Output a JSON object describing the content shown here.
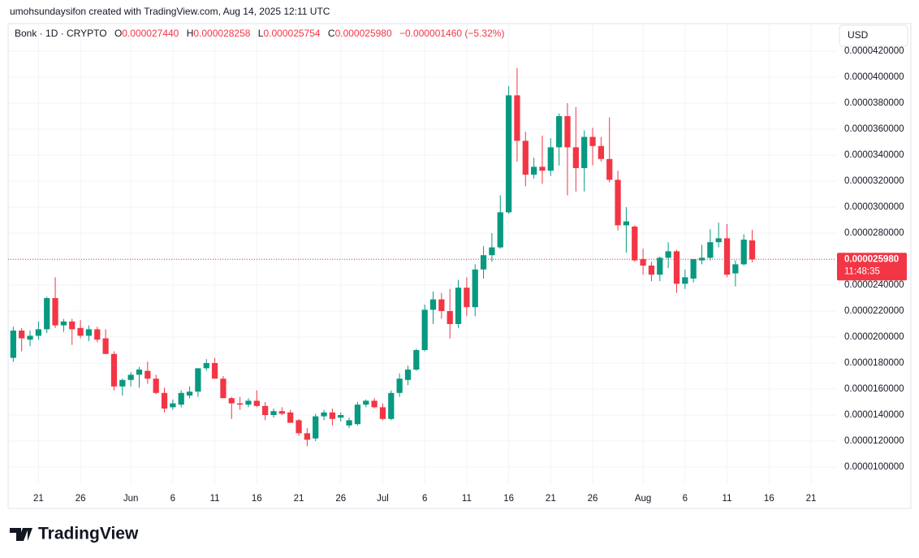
{
  "creator_line": "umohsundaysifon created with TradingView.com, Aug 14, 2025 12:11 UTC",
  "brand": "TradingView",
  "currency": "USD",
  "header": {
    "symbol": "Bonk · 1D · CRYPTO",
    "ohlc": [
      {
        "key": "O",
        "value": "0.000027440"
      },
      {
        "key": "H",
        "value": "0.000028258"
      },
      {
        "key": "L",
        "value": "0.000025754"
      },
      {
        "key": "C",
        "value": "0.000025980"
      }
    ],
    "change": "−0.000001460 (−5.32%)"
  },
  "price_label": "0.000025980",
  "countdown": "11:48:35",
  "chart_data": {
    "type": "candlestick",
    "up_color": "#089981",
    "down_color": "#f23645",
    "grid": true,
    "x": [
      "2025-05-18",
      "2025-05-19",
      "2025-05-20",
      "2025-05-21",
      "2025-05-22",
      "2025-05-23",
      "2025-05-24",
      "2025-05-25",
      "2025-05-26",
      "2025-05-27",
      "2025-05-28",
      "2025-05-29",
      "2025-05-30",
      "2025-05-31",
      "2025-06-01",
      "2025-06-02",
      "2025-06-03",
      "2025-06-04",
      "2025-06-05",
      "2025-06-06",
      "2025-06-07",
      "2025-06-08",
      "2025-06-09",
      "2025-06-10",
      "2025-06-11",
      "2025-06-12",
      "2025-06-13",
      "2025-06-14",
      "2025-06-15",
      "2025-06-16",
      "2025-06-17",
      "2025-06-18",
      "2025-06-19",
      "2025-06-20",
      "2025-06-21",
      "2025-06-22",
      "2025-06-23",
      "2025-06-24",
      "2025-06-25",
      "2025-06-26",
      "2025-06-27",
      "2025-06-28",
      "2025-06-29",
      "2025-06-30",
      "2025-07-01",
      "2025-07-02",
      "2025-07-03",
      "2025-07-04",
      "2025-07-05",
      "2025-07-06",
      "2025-07-07",
      "2025-07-08",
      "2025-07-09",
      "2025-07-10",
      "2025-07-11",
      "2025-07-12",
      "2025-07-13",
      "2025-07-14",
      "2025-07-15",
      "2025-07-16",
      "2025-07-17",
      "2025-07-18",
      "2025-07-19",
      "2025-07-20",
      "2025-07-21",
      "2025-07-22",
      "2025-07-23",
      "2025-07-24",
      "2025-07-25",
      "2025-07-26",
      "2025-07-27",
      "2025-07-28",
      "2025-07-29",
      "2025-07-30",
      "2025-07-31",
      "2025-08-01",
      "2025-08-02",
      "2025-08-03",
      "2025-08-04",
      "2025-08-05",
      "2025-08-06",
      "2025-08-07",
      "2025-08-08",
      "2025-08-09",
      "2025-08-10",
      "2025-08-11",
      "2025-08-12",
      "2025-08-13",
      "2025-08-14"
    ],
    "open": [
      1.84e-05,
      2.05e-05,
      1.98e-05,
      2.01e-05,
      2.06e-05,
      2.3e-05,
      2.09e-05,
      2.12e-05,
      2.07e-05,
      2.01e-05,
      2.06e-05,
      1.99e-05,
      1.87e-05,
      1.62e-05,
      1.67e-05,
      1.71e-05,
      1.74e-05,
      1.68e-05,
      1.57e-05,
      1.46e-05,
      1.48e-05,
      1.55e-05,
      1.58e-05,
      1.76e-05,
      1.8e-05,
      1.68e-05,
      1.53e-05,
      1.49e-05,
      1.48e-05,
      1.51e-05,
      1.47e-05,
      1.4e-05,
      1.43e-05,
      1.42e-05,
      1.36e-05,
      1.26e-05,
      1.22e-05,
      1.39e-05,
      1.42e-05,
      1.38e-05,
      1.32e-05,
      1.33e-05,
      1.48e-05,
      1.51e-05,
      1.46e-05,
      1.37e-05,
      1.57e-05,
      1.67e-05,
      1.75e-05,
      1.9e-05,
      2.21e-05,
      2.29e-05,
      2.2e-05,
      2.1e-05,
      2.38e-05,
      2.23e-05,
      2.52e-05,
      2.63e-05,
      2.69e-05,
      2.96e-05,
      3.86e-05,
      3.51e-05,
      3.25e-05,
      3.31e-05,
      3.28e-05,
      3.46e-05,
      3.7e-05,
      3.46e-05,
      3.3e-05,
      3.54e-05,
      3.47e-05,
      3.37e-05,
      3.21e-05,
      2.86e-05,
      2.85e-05,
      2.6e-05,
      2.55e-05,
      2.48e-05,
      2.61e-05,
      2.66e-05,
      2.41e-05,
      2.45e-05,
      2.59e-05,
      2.61e-05,
      2.73e-05,
      2.76e-05,
      2.49e-05,
      2.56e-05,
      2.744e-05
    ],
    "high": [
      2.08e-05,
      2.07e-05,
      2.05e-05,
      2.12e-05,
      2.31e-05,
      2.46e-05,
      2.14e-05,
      2.14e-05,
      2.13e-05,
      2.09e-05,
      2.08e-05,
      2.06e-05,
      1.89e-05,
      1.68e-05,
      1.73e-05,
      1.77e-05,
      1.81e-05,
      1.71e-05,
      1.61e-05,
      1.52e-05,
      1.59e-05,
      1.62e-05,
      1.76e-05,
      1.83e-05,
      1.84e-05,
      1.7e-05,
      1.54e-05,
      1.54e-05,
      1.53e-05,
      1.59e-05,
      1.5e-05,
      1.45e-05,
      1.46e-05,
      1.44e-05,
      1.37e-05,
      1.3e-05,
      1.41e-05,
      1.44e-05,
      1.45e-05,
      1.42e-05,
      1.38e-05,
      1.5e-05,
      1.52e-05,
      1.53e-05,
      1.49e-05,
      1.59e-05,
      1.72e-05,
      1.78e-05,
      1.91e-05,
      2.25e-05,
      2.35e-05,
      2.34e-05,
      2.37e-05,
      2.44e-05,
      2.46e-05,
      2.56e-05,
      2.7e-05,
      2.8e-05,
      3.09e-05,
      3.93e-05,
      4.07e-05,
      3.58e-05,
      3.38e-05,
      3.55e-05,
      3.53e-05,
      3.72e-05,
      3.8e-05,
      3.77e-05,
      3.59e-05,
      3.61e-05,
      3.54e-05,
      3.69e-05,
      3.28e-05,
      3e-05,
      2.86e-05,
      2.68e-05,
      2.58e-05,
      2.62e-05,
      2.73e-05,
      2.67e-05,
      2.52e-05,
      2.6e-05,
      2.71e-05,
      2.83e-05,
      2.88e-05,
      2.87e-05,
      2.59e-05,
      2.79e-05,
      2.8258e-05
    ],
    "low": [
      1.81e-05,
      1.89e-05,
      1.93e-05,
      1.98e-05,
      2.03e-05,
      2.07e-05,
      2.04e-05,
      1.94e-05,
      1.99e-05,
      1.97e-05,
      1.96e-05,
      1.87e-05,
      1.59e-05,
      1.55e-05,
      1.62e-05,
      1.61e-05,
      1.64e-05,
      1.56e-05,
      1.42e-05,
      1.44e-05,
      1.46e-05,
      1.53e-05,
      1.54e-05,
      1.74e-05,
      1.68e-05,
      1.53e-05,
      1.37e-05,
      1.44e-05,
      1.46e-05,
      1.46e-05,
      1.36e-05,
      1.38e-05,
      1.4e-05,
      1.34e-05,
      1.24e-05,
      1.16e-05,
      1.2e-05,
      1.36e-05,
      1.32e-05,
      1.35e-05,
      1.3e-05,
      1.32e-05,
      1.46e-05,
      1.45e-05,
      1.36e-05,
      1.36e-05,
      1.54e-05,
      1.63e-05,
      1.74e-05,
      1.89e-05,
      2.1e-05,
      2.14e-05,
      1.99e-05,
      2.07e-05,
      2.16e-05,
      2.16e-05,
      2.45e-05,
      2.58e-05,
      2.68e-05,
      2.95e-05,
      3.35e-05,
      3.16e-05,
      3.22e-05,
      3.18e-05,
      3.24e-05,
      3.32e-05,
      3.09e-05,
      3.12e-05,
      3.12e-05,
      3.32e-05,
      3.35e-05,
      3.19e-05,
      2.82e-05,
      2.65e-05,
      2.58e-05,
      2.48e-05,
      2.43e-05,
      2.43e-05,
      2.53e-05,
      2.34e-05,
      2.37e-05,
      2.42e-05,
      2.56e-05,
      2.59e-05,
      2.69e-05,
      2.46e-05,
      2.39e-05,
      2.55e-05,
      2.5754e-05
    ],
    "close": [
      2.05e-05,
      1.99e-05,
      2.01e-05,
      2.06e-05,
      2.3e-05,
      2.09e-05,
      2.12e-05,
      2.06e-05,
      2.01e-05,
      2.06e-05,
      1.98e-05,
      1.87e-05,
      1.62e-05,
      1.67e-05,
      1.71e-05,
      1.75e-05,
      1.68e-05,
      1.57e-05,
      1.45e-05,
      1.49e-05,
      1.57e-05,
      1.58e-05,
      1.76e-05,
      1.8e-05,
      1.68e-05,
      1.53e-05,
      1.49e-05,
      1.48e-05,
      1.51e-05,
      1.47e-05,
      1.4e-05,
      1.43e-05,
      1.41e-05,
      1.34e-05,
      1.26e-05,
      1.21e-05,
      1.39e-05,
      1.42e-05,
      1.37e-05,
      1.4e-05,
      1.36e-05,
      1.48e-05,
      1.51e-05,
      1.46e-05,
      1.37e-05,
      1.57e-05,
      1.68e-05,
      1.75e-05,
      1.9e-05,
      2.21e-05,
      2.29e-05,
      2.2e-05,
      2.1e-05,
      2.38e-05,
      2.23e-05,
      2.52e-05,
      2.63e-05,
      2.69e-05,
      2.96e-05,
      3.86e-05,
      3.51e-05,
      3.25e-05,
      3.31e-05,
      3.28e-05,
      3.46e-05,
      3.7e-05,
      3.46e-05,
      3.3e-05,
      3.54e-05,
      3.47e-05,
      3.37e-05,
      3.21e-05,
      2.86e-05,
      2.89e-05,
      2.59e-05,
      2.55e-05,
      2.48e-05,
      2.61e-05,
      2.66e-05,
      2.41e-05,
      2.46e-05,
      2.6e-05,
      2.61e-05,
      2.73e-05,
      2.76e-05,
      2.48e-05,
      2.56e-05,
      2.75e-05,
      2.598e-05
    ],
    "xlim": [
      "2025-05-17",
      "2025-08-24"
    ],
    "xticks": [
      {
        "value": "2025-05-21",
        "label": "21"
      },
      {
        "value": "2025-05-26",
        "label": "26"
      },
      {
        "value": "2025-06-01",
        "label": "Jun"
      },
      {
        "value": "2025-06-06",
        "label": "6"
      },
      {
        "value": "2025-06-11",
        "label": "11"
      },
      {
        "value": "2025-06-16",
        "label": "16"
      },
      {
        "value": "2025-06-21",
        "label": "21"
      },
      {
        "value": "2025-06-26",
        "label": "26"
      },
      {
        "value": "2025-07-01",
        "label": "Jul"
      },
      {
        "value": "2025-07-06",
        "label": "6"
      },
      {
        "value": "2025-07-11",
        "label": "11"
      },
      {
        "value": "2025-07-16",
        "label": "16"
      },
      {
        "value": "2025-07-21",
        "label": "21"
      },
      {
        "value": "2025-07-26",
        "label": "26"
      },
      {
        "value": "2025-08-01",
        "label": "Aug"
      },
      {
        "value": "2025-08-06",
        "label": "6"
      },
      {
        "value": "2025-08-11",
        "label": "11"
      },
      {
        "value": "2025-08-16",
        "label": "16"
      },
      {
        "value": "2025-08-21",
        "label": "21"
      }
    ],
    "ylim": [
      8.75e-06,
      4.406e-05
    ],
    "yticks": [
      {
        "value": 1e-05,
        "label": "0.0000100000"
      },
      {
        "value": 1.2e-05,
        "label": "0.0000120000"
      },
      {
        "value": 1.4e-05,
        "label": "0.0000140000"
      },
      {
        "value": 1.6e-05,
        "label": "0.0000160000"
      },
      {
        "value": 1.8e-05,
        "label": "0.0000180000"
      },
      {
        "value": 2e-05,
        "label": "0.0000200000"
      },
      {
        "value": 2.2e-05,
        "label": "0.0000220000"
      },
      {
        "value": 2.4e-05,
        "label": "0.0000240000"
      },
      {
        "value": 2.6e-05,
        "label": "0.0000260000"
      },
      {
        "value": 2.8e-05,
        "label": "0.0000280000"
      },
      {
        "value": 3e-05,
        "label": "0.0000300000"
      },
      {
        "value": 3.2e-05,
        "label": "0.0000320000"
      },
      {
        "value": 3.4e-05,
        "label": "0.0000340000"
      },
      {
        "value": 3.6e-05,
        "label": "0.0000360000"
      },
      {
        "value": 3.8e-05,
        "label": "0.0000380000"
      },
      {
        "value": 4e-05,
        "label": "0.0000400000"
      },
      {
        "value": 4.2e-05,
        "label": "0.0000420000"
      }
    ]
  }
}
